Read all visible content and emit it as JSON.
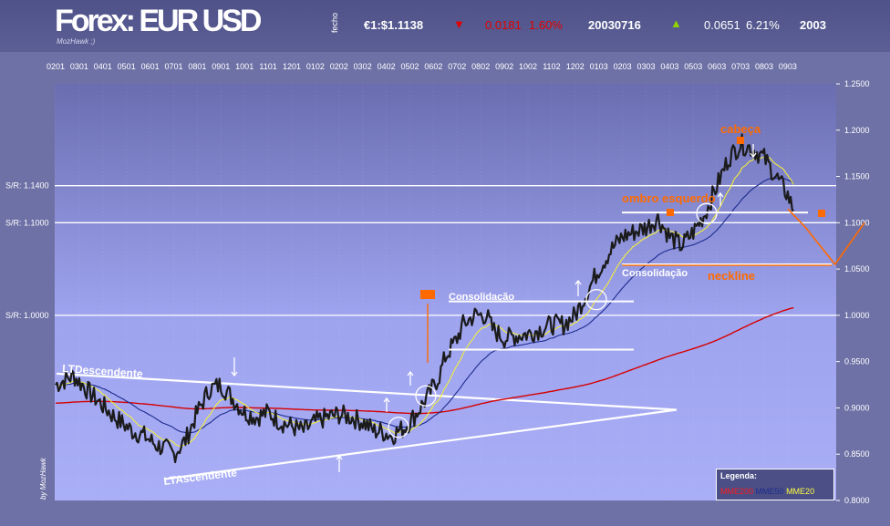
{
  "header": {
    "title": "Forex: EUR USD",
    "watermark_small": "MozHawk ;)",
    "fecho_label": "fecho",
    "price": "€1:$1.1138",
    "daily_change": "0.0181",
    "daily_change_pct": "1.60%",
    "date": "20030716",
    "ytd_change": "0.0651",
    "ytd_change_pct": "6.21%",
    "year": "2003",
    "down_color": "#e00000",
    "up_color": "#8fd400"
  },
  "chart_data": {
    "type": "line",
    "x_ticks": [
      "0201",
      "0301",
      "0401",
      "0501",
      "0601",
      "0701",
      "0801",
      "0901",
      "1001",
      "1101",
      "1201",
      "0102",
      "0202",
      "0302",
      "0402",
      "0502",
      "0602",
      "0702",
      "0802",
      "0902",
      "1002",
      "1102",
      "1202",
      "0103",
      "0203",
      "0303",
      "0403",
      "0503",
      "0603",
      "0703",
      "0803",
      "0903"
    ],
    "y_ticks": [
      "1.2500",
      "1.2000",
      "1.1500",
      "1.1000",
      "1.0500",
      "1.0000",
      "0.9500",
      "0.9000",
      "0.8500",
      "0.8000"
    ],
    "ylim": [
      0.8,
      1.25
    ],
    "sr_labels": [
      {
        "label": "S/R: 1.1400",
        "value": 1.14
      },
      {
        "label": "S/R: 1.1000",
        "value": 1.1
      },
      {
        "label": "S/R: 1.0000",
        "value": 1.0
      }
    ],
    "price_keypoints": [
      [
        0,
        0.925
      ],
      [
        3,
        0.935
      ],
      [
        6,
        0.915
      ],
      [
        10,
        0.89
      ],
      [
        13,
        0.875
      ],
      [
        15,
        0.87
      ],
      [
        17,
        0.86
      ],
      [
        19,
        0.855
      ],
      [
        20,
        0.85
      ],
      [
        22,
        0.865
      ],
      [
        24,
        0.895
      ],
      [
        26,
        0.92
      ],
      [
        28,
        0.925
      ],
      [
        30,
        0.91
      ],
      [
        32,
        0.895
      ],
      [
        34,
        0.89
      ],
      [
        36,
        0.895
      ],
      [
        38,
        0.885
      ],
      [
        40,
        0.88
      ],
      [
        42,
        0.875
      ],
      [
        44,
        0.885
      ],
      [
        46,
        0.89
      ],
      [
        48,
        0.893
      ],
      [
        50,
        0.89
      ],
      [
        52,
        0.885
      ],
      [
        54,
        0.875
      ],
      [
        55,
        0.875
      ],
      [
        57,
        0.87
      ],
      [
        58,
        0.875
      ],
      [
        59,
        0.878
      ],
      [
        61,
        0.893
      ],
      [
        63,
        0.912
      ],
      [
        65,
        0.935
      ],
      [
        66,
        0.955
      ],
      [
        68,
        0.975
      ],
      [
        69,
        0.99
      ],
      [
        71,
        1.0
      ],
      [
        73,
        1.0
      ],
      [
        74,
        0.985
      ],
      [
        76,
        0.975
      ],
      [
        78,
        0.978
      ],
      [
        80,
        0.98
      ],
      [
        82,
        0.985
      ],
      [
        84,
        0.99
      ],
      [
        86,
        0.99
      ],
      [
        88,
        1.0
      ],
      [
        90,
        1.025
      ],
      [
        92,
        1.05
      ],
      [
        94,
        1.07
      ],
      [
        96,
        1.085
      ],
      [
        98,
        1.09
      ],
      [
        100,
        1.095
      ],
      [
        102,
        1.105
      ],
      [
        104,
        1.085
      ],
      [
        106,
        1.075
      ],
      [
        108,
        1.09
      ],
      [
        110,
        1.11
      ],
      [
        112,
        1.14
      ],
      [
        114,
        1.17
      ],
      [
        116,
        1.185
      ],
      [
        118,
        1.18
      ],
      [
        120,
        1.17
      ],
      [
        122,
        1.15
      ],
      [
        124,
        1.13
      ],
      [
        125,
        1.113
      ]
    ],
    "series_names": [
      "MME200",
      "MME50",
      "MME20"
    ],
    "series_colors": {
      "price": "#1b1b1b",
      "MME20": "#f2ef3c",
      "MME50": "#1d2c8f",
      "MME200": "#d50000"
    },
    "projection": [
      [
        124,
        1.115
      ],
      [
        127,
        1.095
      ],
      [
        132,
        1.055
      ],
      [
        137,
        1.1
      ]
    ],
    "neckline_value": 1.055
  },
  "annotations": {
    "lt_descendente": "LTDescendente",
    "lt_ascendente": "LTAscendente",
    "consolidacao_1": "Consolidação",
    "consolidacao_2": "Consolidação",
    "cabeca": "cabeça",
    "ombro_esquerdo": "ombro esquerdo",
    "neckline": "neckline",
    "watermark_side": "by MozHawk"
  },
  "legend": {
    "title": "Legenda:",
    "items": [
      {
        "label": "MME200",
        "color": "#ff1a1a"
      },
      {
        "label": "MME50",
        "color": "#1d2c8f"
      },
      {
        "label": "MME20",
        "color": "#ffff40"
      }
    ]
  }
}
